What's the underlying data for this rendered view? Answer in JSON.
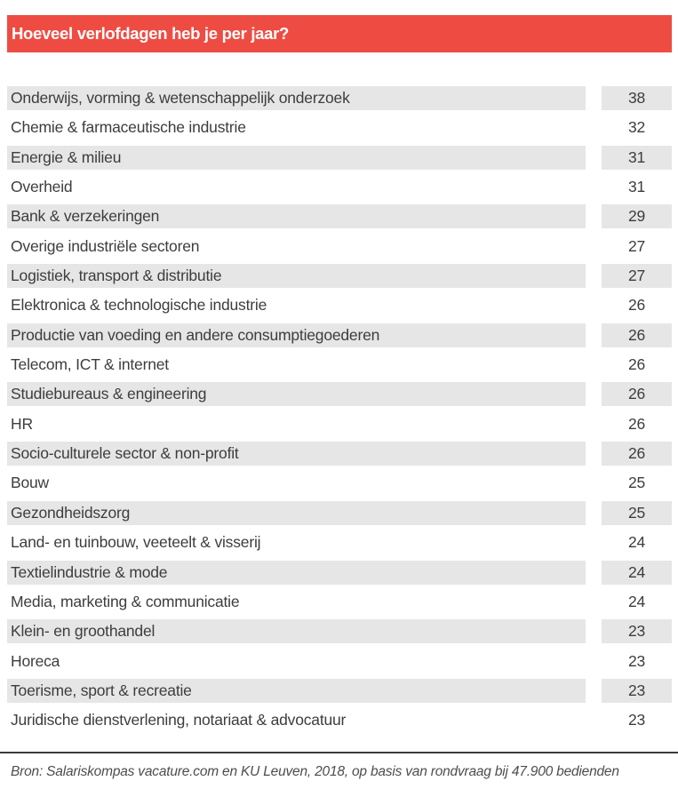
{
  "header": {
    "title": "Hoeveel verlofdagen heb je per jaar?"
  },
  "chart_data": {
    "type": "table",
    "title": "Hoeveel verlofdagen heb je per jaar?",
    "rows": [
      {
        "sector": "Onderwijs, vorming & wetenschappelijk onderzoek",
        "days": 38
      },
      {
        "sector": "Chemie & farmaceutische industrie",
        "days": 32
      },
      {
        "sector": "Energie & milieu",
        "days": 31
      },
      {
        "sector": "Overheid",
        "days": 31
      },
      {
        "sector": "Bank & verzekeringen",
        "days": 29
      },
      {
        "sector": "Overige industriële sectoren",
        "days": 27
      },
      {
        "sector": "Logistiek, transport & distributie",
        "days": 27
      },
      {
        "sector": "Elektronica & technologische industrie",
        "days": 26
      },
      {
        "sector": "Productie van voeding en andere consumptiegoederen",
        "days": 26
      },
      {
        "sector": "Telecom, ICT & internet",
        "days": 26
      },
      {
        "sector": "Studiebureaus & engineering",
        "days": 26
      },
      {
        "sector": "HR",
        "days": 26
      },
      {
        "sector": "Socio-culturele sector & non-profit",
        "days": 26
      },
      {
        "sector": "Bouw",
        "days": 25
      },
      {
        "sector": "Gezondheidszorg",
        "days": 25
      },
      {
        "sector": "Land- en tuinbouw, veeteelt & visserij",
        "days": 24
      },
      {
        "sector": "Textielindustrie & mode",
        "days": 24
      },
      {
        "sector": "Media, marketing & communicatie",
        "days": 24
      },
      {
        "sector": "Klein- en groothandel",
        "days": 23
      },
      {
        "sector": "Horeca",
        "days": 23
      },
      {
        "sector": "Toerisme, sport & recreatie",
        "days": 23
      },
      {
        "sector": "Juridische dienstverlening, notariaat & advocatuur",
        "days": 23
      }
    ],
    "value_range": [
      23,
      38
    ],
    "sort": "descending by days",
    "layout": {
      "striped": true,
      "first_row_shaded": true
    }
  },
  "footer": {
    "source": "Bron: Salariskompas vacature.com en KU Leuven, 2018, op basis van rondvraag bij 47.900 bedienden"
  },
  "colors": {
    "accent": "#ee4c43",
    "row_shade": "#e6e6e6",
    "text": "#3d3d3d",
    "footer_line": "#3a3a3a",
    "footer_text": "#4d4d4d"
  }
}
